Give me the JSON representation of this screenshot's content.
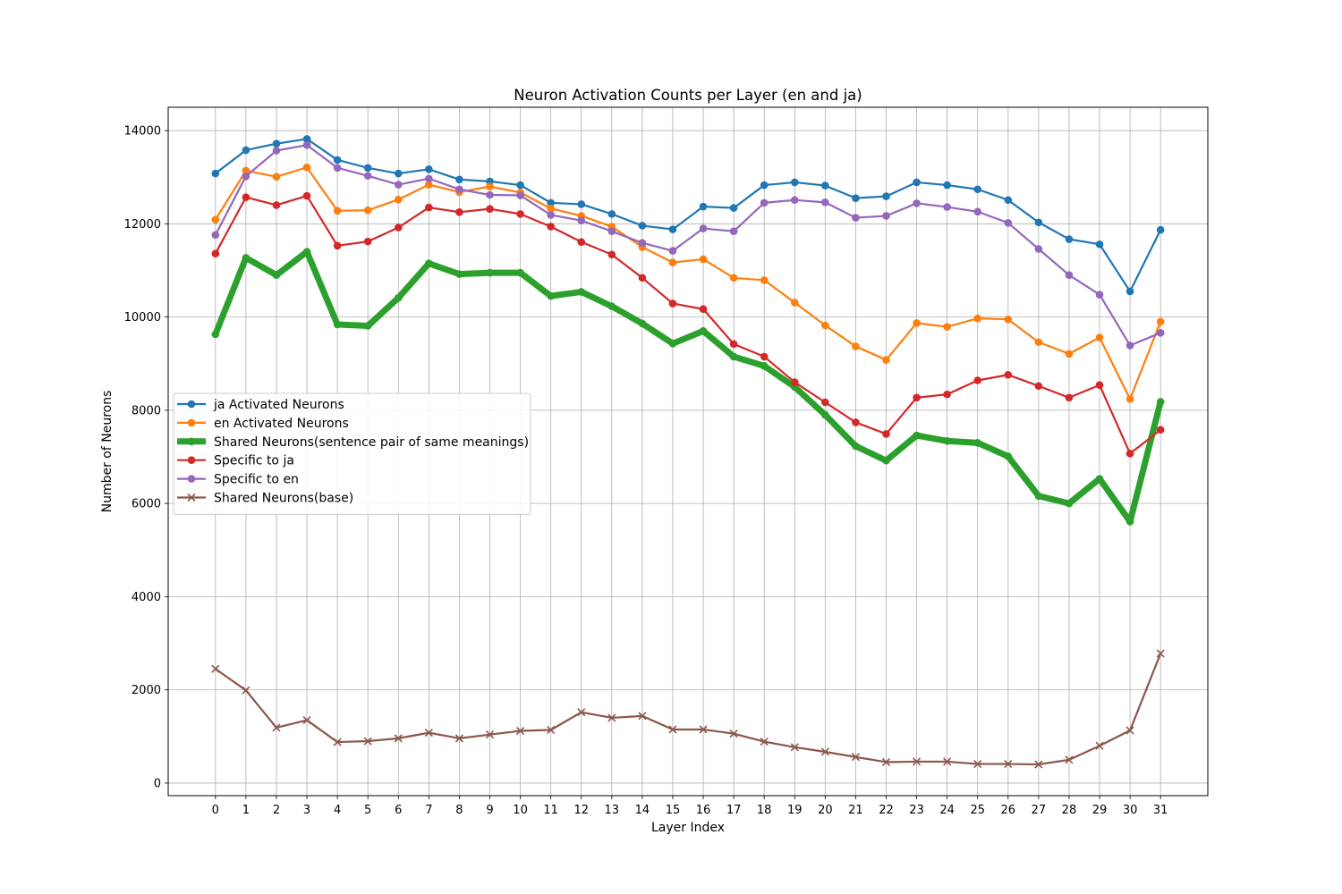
{
  "chart_data": {
    "type": "line",
    "title": "Neuron Activation Counts per Layer (en and ja)",
    "xlabel": "Layer Index",
    "ylabel": "Number of Neurons",
    "x": [
      0,
      1,
      2,
      3,
      4,
      5,
      6,
      7,
      8,
      9,
      10,
      11,
      12,
      13,
      14,
      15,
      16,
      17,
      18,
      19,
      20,
      21,
      22,
      23,
      24,
      25,
      26,
      27,
      28,
      29,
      30,
      31
    ],
    "xlim": [
      -1.55,
      32.55
    ],
    "ylim": [
      -270,
      14500
    ],
    "yticks": [
      0,
      2000,
      4000,
      6000,
      8000,
      10000,
      12000,
      14000
    ],
    "grid": true,
    "legend_position": "center-left",
    "series": [
      {
        "name": "ja Activated Neurons",
        "color": "#1f77b4",
        "marker": "circle",
        "line_width": "normal",
        "values": [
          13080,
          13580,
          13720,
          13820,
          13370,
          13200,
          13080,
          13170,
          12950,
          12910,
          12830,
          12450,
          12420,
          12210,
          11960,
          11880,
          12370,
          12340,
          12830,
          12890,
          12820,
          12550,
          12590,
          12890,
          12830,
          12740,
          12510,
          12030,
          11670,
          11560,
          10550,
          11870
        ]
      },
      {
        "name": "en Activated Neurons",
        "color": "#ff7f0e",
        "marker": "circle",
        "line_width": "normal",
        "values": [
          12090,
          13140,
          13010,
          13210,
          12280,
          12290,
          12520,
          12840,
          12680,
          12800,
          12670,
          12330,
          12170,
          11940,
          11500,
          11170,
          11240,
          10840,
          10790,
          10310,
          9820,
          9370,
          9080,
          9870,
          9790,
          9970,
          9950,
          9460,
          9210,
          9560,
          8240,
          9900
        ]
      },
      {
        "name": "Shared Neurons(sentence pair of same meanings)",
        "color": "#2ca02c",
        "marker": "circle",
        "line_width": "thick",
        "values": [
          9630,
          11270,
          10900,
          11400,
          9840,
          9810,
          10410,
          11150,
          10920,
          10950,
          10950,
          10450,
          10540,
          10230,
          9860,
          9430,
          9700,
          9150,
          8950,
          8500,
          7900,
          7230,
          6920,
          7460,
          7340,
          7300,
          7010,
          6160,
          6000,
          6530,
          5610,
          8180
        ]
      },
      {
        "name": "Specific to ja",
        "color": "#d62728",
        "marker": "circle",
        "line_width": "normal",
        "values": [
          11360,
          12570,
          12400,
          12600,
          11530,
          11620,
          11920,
          12350,
          12250,
          12320,
          12210,
          11940,
          11610,
          11340,
          10840,
          10290,
          10170,
          9420,
          9150,
          8600,
          8170,
          7740,
          7490,
          8270,
          8340,
          8640,
          8760,
          8520,
          8270,
          8540,
          7070,
          7580
        ]
      },
      {
        "name": "Specific to en",
        "color": "#9467bd",
        "marker": "circle",
        "line_width": "normal",
        "values": [
          11760,
          13020,
          13570,
          13690,
          13200,
          13030,
          12840,
          12970,
          12740,
          12620,
          12610,
          12190,
          12070,
          11840,
          11590,
          11420,
          11900,
          11840,
          12450,
          12510,
          12460,
          12130,
          12170,
          12440,
          12360,
          12260,
          12020,
          11460,
          10900,
          10480,
          9390,
          9660
        ]
      },
      {
        "name": "Shared Neurons(base)",
        "color": "#8c564b",
        "marker": "x",
        "line_width": "normal",
        "values": [
          2450,
          1990,
          1190,
          1350,
          880,
          900,
          960,
          1080,
          960,
          1040,
          1120,
          1140,
          1520,
          1400,
          1440,
          1150,
          1150,
          1060,
          890,
          770,
          670,
          560,
          450,
          460,
          460,
          410,
          410,
          400,
          500,
          800,
          1130,
          2780
        ]
      }
    ]
  }
}
